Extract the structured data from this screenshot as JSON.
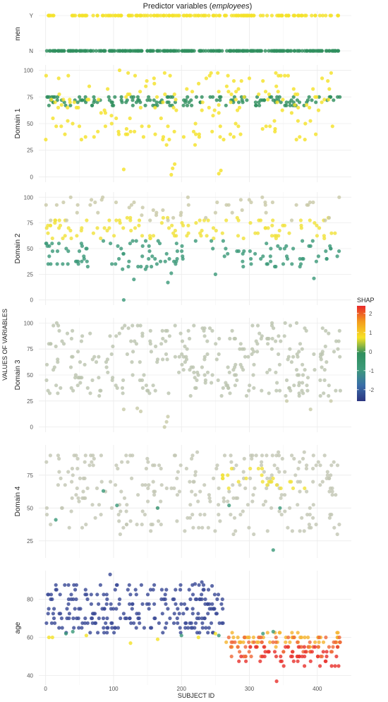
{
  "title_prefix": "Predictor variables (",
  "title_italic": "employees",
  "title_suffix": ")",
  "xlabel": "SUBJECT ID",
  "ylabel_outer": "VALUES OF VARIABLES",
  "legend": {
    "title": "SHAP",
    "ticks": [
      2,
      1,
      0,
      -1,
      -2
    ],
    "range": [
      -2.6,
      2.4
    ],
    "colors": [
      "#2c3580",
      "#3a6ea8",
      "#3d9a7a",
      "#2f8f5e",
      "#f7e225",
      "#f39c1e",
      "#e8282a"
    ]
  },
  "chart_data": {
    "type": "scatter",
    "x_range": [
      -10,
      450
    ],
    "x_ticks": [
      0,
      100,
      200,
      300,
      400
    ],
    "grid": true,
    "color_encoding": "SHAP value",
    "panels": [
      {
        "name": "men",
        "ylabel": "men",
        "categorical": true,
        "categories": [
          "N",
          "Y"
        ],
        "y_ticks": [
          "Y",
          "N"
        ],
        "point_groups": [
          {
            "y": "Y",
            "color": "#f4e22a",
            "x_from": 2,
            "x_to": 432,
            "count": 165
          },
          {
            "y": "N",
            "color": "#2f8f5e",
            "x_from": 0,
            "x_to": 434,
            "count": 270
          }
        ]
      },
      {
        "name": "domain1",
        "ylabel": "Domain 1",
        "y_range": [
          -5,
          105
        ],
        "y_ticks": [
          0,
          25,
          50,
          75,
          100
        ],
        "point_groups": [
          {
            "color": "#2f8f5e",
            "y_values": [
              67,
              70,
              72,
              75
            ],
            "x_from": 0,
            "x_to": 434,
            "count": 150
          },
          {
            "color": "#f4e22a",
            "y_from": 35,
            "y_to": 100,
            "x_from": 0,
            "x_to": 434,
            "count": 170
          },
          {
            "color": "#f4e22a",
            "points": [
              [
                185,
                2
              ],
              [
                187,
                8
              ],
              [
                190,
                12
              ],
              [
                255,
                3
              ],
              [
                258,
                6
              ],
              [
                115,
                7
              ],
              [
                178,
                30
              ],
              [
                182,
                35
              ],
              [
                220,
                30
              ]
            ]
          }
        ]
      },
      {
        "name": "domain2",
        "ylabel": "Domain 2",
        "y_range": [
          -5,
          105
        ],
        "y_ticks": [
          0,
          25,
          50,
          75,
          100
        ],
        "point_groups": [
          {
            "color": "#f0e23c",
            "y_from": 60,
            "y_to": 80,
            "x_from": 0,
            "x_to": 434,
            "count": 110
          },
          {
            "color": "#c9c9a8",
            "y_from": 75,
            "y_to": 100,
            "x_from": 0,
            "x_to": 434,
            "count": 55
          },
          {
            "color": "#3d9a7a",
            "y_from": 30,
            "y_to": 58,
            "x_from": 0,
            "x_to": 434,
            "count": 130
          },
          {
            "color": "#3d9a7a",
            "points": [
              [
                115,
                0
              ],
              [
                180,
                17
              ],
              [
                130,
                20
              ],
              [
                395,
                21
              ],
              [
                185,
                26
              ],
              [
                250,
                25
              ]
            ]
          }
        ]
      },
      {
        "name": "domain3",
        "ylabel": "Domain 3",
        "y_range": [
          -5,
          105
        ],
        "y_ticks": [
          0,
          25,
          50,
          75,
          100
        ],
        "point_groups": [
          {
            "color": "#bcc5b0",
            "y_from": 30,
            "y_to": 100,
            "x_from": 0,
            "x_to": 434,
            "count": 300
          },
          {
            "color": "#c8caa8",
            "points": [
              [
                175,
                0
              ],
              [
                178,
                5
              ],
              [
                180,
                10
              ],
              [
                140,
                15
              ],
              [
                135,
                18
              ],
              [
                115,
                17
              ],
              [
                355,
                25
              ],
              [
                420,
                25
              ],
              [
                390,
                17
              ]
            ]
          }
        ]
      },
      {
        "name": "domain4",
        "ylabel": "Domain 4",
        "y_range": [
          12,
          98
        ],
        "y_ticks": [
          25,
          50,
          75
        ],
        "point_groups": [
          {
            "color": "#c3c7b5",
            "y_from": 30,
            "y_to": 92,
            "x_from": 0,
            "x_to": 434,
            "count": 280
          },
          {
            "color": "#f0e23c",
            "y_from": 65,
            "y_to": 80,
            "x_from": 260,
            "x_to": 400,
            "count": 25
          },
          {
            "color": "#3d9a7a",
            "points": [
              [
                15,
                41
              ],
              [
                85,
                63
              ],
              [
                105,
                52
              ],
              [
                165,
                50
              ],
              [
                345,
                50
              ],
              [
                335,
                18
              ],
              [
                270,
                52
              ]
            ]
          }
        ]
      },
      {
        "name": "age",
        "ylabel": "age",
        "y_range": [
          35,
          95
        ],
        "y_ticks": [
          40,
          60,
          80
        ],
        "point_groups": [
          {
            "color": "#3a4a96",
            "y_from": 62,
            "y_to": 88,
            "x_from": 0,
            "x_to": 262,
            "count": 240
          },
          {
            "color": "#f5b431",
            "y_from": 55,
            "y_to": 62,
            "x_from": 265,
            "x_to": 434,
            "count": 60
          },
          {
            "color": "#ef6a3a",
            "y_from": 50,
            "y_to": 60,
            "x_from": 265,
            "x_to": 434,
            "count": 60
          },
          {
            "color": "#e8332e",
            "y_from": 45,
            "y_to": 56,
            "x_from": 280,
            "x_to": 434,
            "count": 50
          },
          {
            "color": "#f4e22a",
            "points": [
              [
                5,
                60
              ],
              [
                10,
                60
              ],
              [
                60,
                61
              ],
              [
                125,
                57
              ],
              [
                165,
                59
              ],
              [
                225,
                60
              ],
              [
                250,
                62
              ]
            ]
          },
          {
            "color": "#3d9a7a",
            "points": [
              [
                30,
                62
              ],
              [
                40,
                63
              ],
              [
                200,
                61
              ],
              [
                255,
                61
              ],
              [
                320,
                62
              ],
              [
                335,
                63
              ]
            ]
          },
          {
            "color": "#e8332e",
            "points": [
              [
                340,
                37
              ]
            ]
          },
          {
            "color": "#3a4a96",
            "points": [
              [
                95,
                93
              ],
              [
                220,
                88
              ],
              [
                230,
                89
              ],
              [
                245,
                87
              ]
            ]
          }
        ]
      }
    ]
  }
}
